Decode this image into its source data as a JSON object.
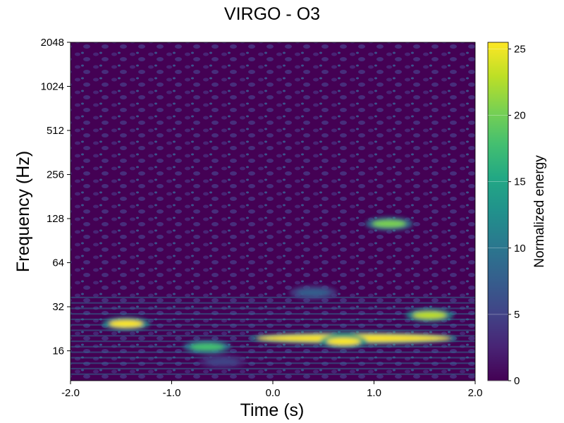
{
  "chart_data": {
    "type": "heatmap",
    "title": "VIRGO - O3",
    "xlabel": "Time (s)",
    "ylabel": "Frequency (Hz)",
    "xlim": [
      -2.0,
      2.0
    ],
    "ylim": [
      10,
      2048
    ],
    "yscale": "log2",
    "x_ticks": [
      {
        "value": -2.0,
        "label": "-2.0"
      },
      {
        "value": -1.0,
        "label": "-1.0"
      },
      {
        "value": 0.0,
        "label": "0.0"
      },
      {
        "value": 1.0,
        "label": "1.0"
      },
      {
        "value": 2.0,
        "label": "2.0"
      }
    ],
    "y_ticks": [
      {
        "value": 16,
        "label": "16"
      },
      {
        "value": 32,
        "label": "32"
      },
      {
        "value": 64,
        "label": "64"
      },
      {
        "value": 128,
        "label": "128"
      },
      {
        "value": 256,
        "label": "256"
      },
      {
        "value": 512,
        "label": "512"
      },
      {
        "value": 1024,
        "label": "1024"
      },
      {
        "value": 2048,
        "label": "2048"
      }
    ],
    "colorbar": {
      "label": "Normalized energy",
      "colormap": "viridis",
      "range": [
        0,
        25.5
      ],
      "ticks": [
        {
          "value": 0,
          "label": "0"
        },
        {
          "value": 5,
          "label": "5"
        },
        {
          "value": 10,
          "label": "10"
        },
        {
          "value": 15,
          "label": "15"
        },
        {
          "value": 20,
          "label": "20"
        },
        {
          "value": 25,
          "label": "25"
        }
      ]
    },
    "hotspots": [
      {
        "t": 0.0,
        "t_end": 1.6,
        "freq": 19.5,
        "energy": 25
      },
      {
        "t": 0.7,
        "t_end": 0.7,
        "freq": 18.5,
        "energy": 25
      },
      {
        "t": -1.45,
        "t_end": -1.45,
        "freq": 24.5,
        "energy": 25
      },
      {
        "t": -0.65,
        "t_end": -0.65,
        "freq": 17,
        "energy": 17
      },
      {
        "t": 1.15,
        "t_end": 1.15,
        "freq": 118,
        "energy": 20
      },
      {
        "t": 1.55,
        "t_end": 1.55,
        "freq": 28,
        "energy": 22
      },
      {
        "t": 0.4,
        "t_end": 0.4,
        "freq": 40,
        "energy": 6
      },
      {
        "t": -0.5,
        "t_end": -0.5,
        "freq": 13.5,
        "energy": 5
      }
    ],
    "grid": false
  }
}
